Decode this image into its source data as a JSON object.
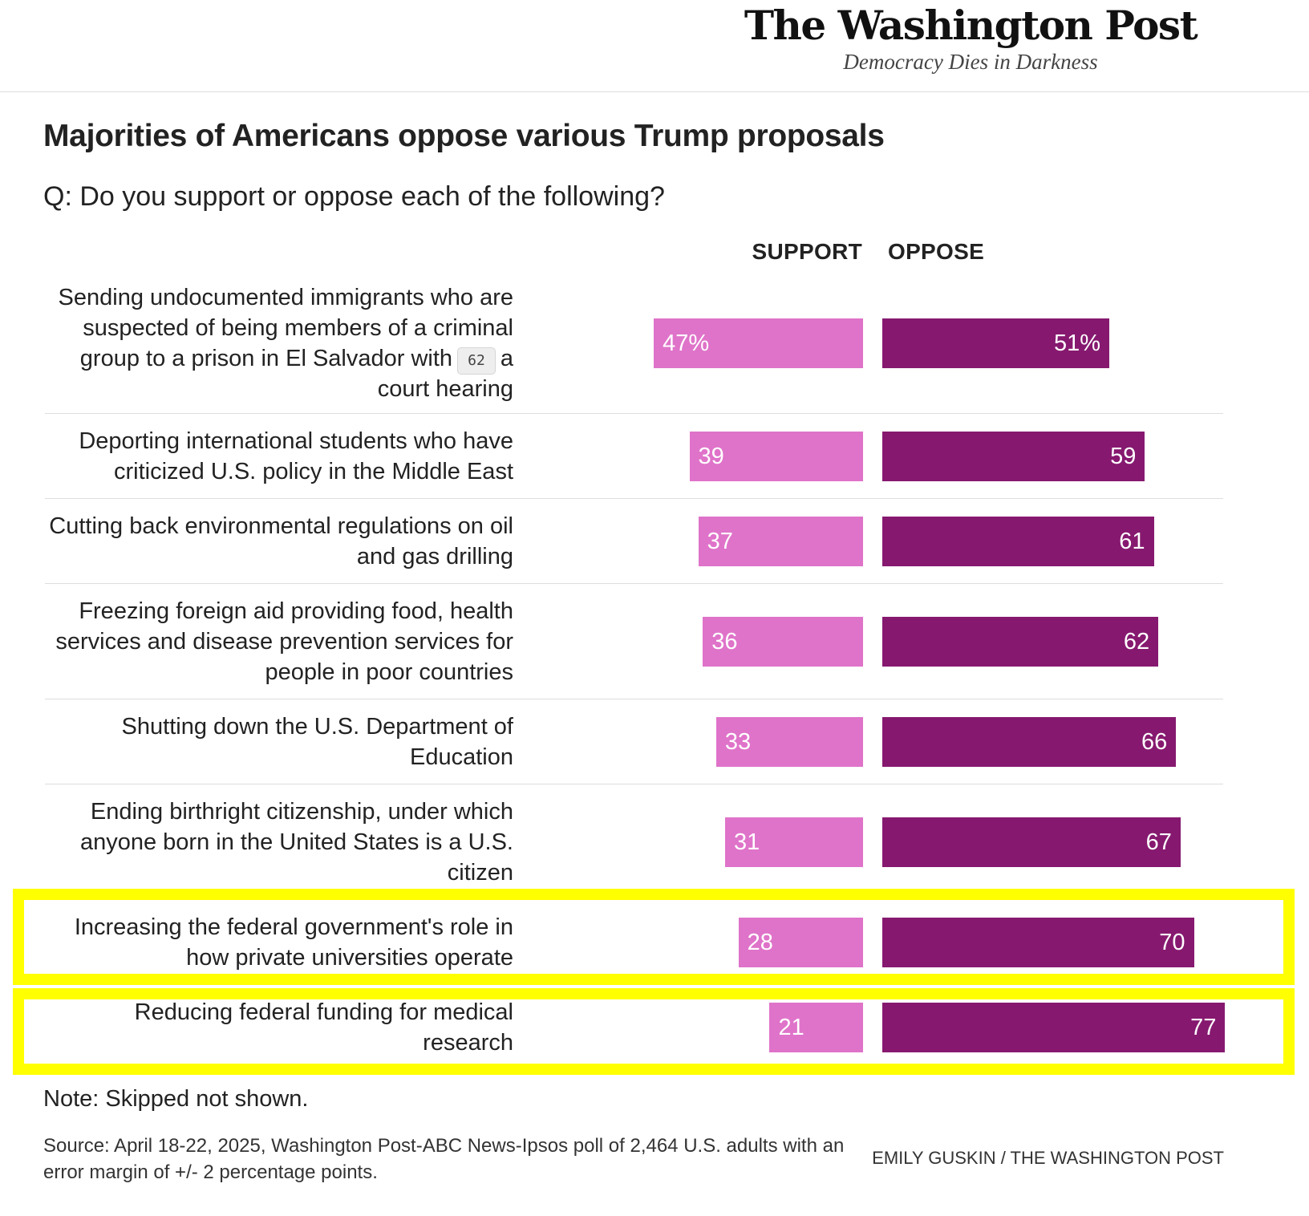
{
  "masthead": {
    "name": "The Washington Post",
    "tagline": "Democracy Dies in Darkness"
  },
  "title": "Majorities of Americans oppose various Trump proposals",
  "subtitle": "Q: Do you support or oppose each of the following?",
  "column_headers": {
    "support": "SUPPORT",
    "oppose": "OPPOSE"
  },
  "tooltip": {
    "value": "62"
  },
  "colors": {
    "support": "#df73c9",
    "oppose": "#86196f",
    "highlight": "#ffff00"
  },
  "chart_data": {
    "type": "bar",
    "orientation": "horizontal",
    "title": "Majorities of Americans oppose various Trump proposals",
    "subtitle": "Q: Do you support or oppose each of the following?",
    "categories": [
      "Sending undocumented immigrants who are suspected of being members of a criminal group to a prison in El Salvador with a court hearing",
      "Deporting international students who have criticized U.S. policy in the Middle East",
      "Cutting back environmental regulations on oil and gas drilling",
      "Freezing foreign aid providing food, health services and disease prevention services for people in poor countries",
      "Shutting down the U.S. Department of Education",
      "Ending birthright citizenship, under which anyone born in the United States is a U.S. citizen",
      "Increasing the federal government's role in how private universities operate",
      "Reducing federal funding for medical research"
    ],
    "series": [
      {
        "name": "SUPPORT",
        "values": [
          47,
          39,
          37,
          36,
          33,
          31,
          28,
          21
        ],
        "labels": [
          "47%",
          "39",
          "37",
          "36",
          "33",
          "31",
          "28",
          "21"
        ]
      },
      {
        "name": "OPPOSE",
        "values": [
          51,
          59,
          61,
          62,
          66,
          67,
          70,
          77
        ],
        "labels": [
          "51%",
          "59",
          "61",
          "62",
          "66",
          "67",
          "70",
          "77"
        ]
      }
    ],
    "value_max": 77,
    "highlighted_rows": [
      6,
      7
    ]
  },
  "rows": [
    {
      "label_pre": "Sending undocumented immigrants who are suspected of being members of a criminal group to a prison in El Salvador with",
      "label_post": " a court hearing"
    },
    {
      "label": "Deporting international students who have criticized U.S. policy in the Middle East"
    },
    {
      "label": "Cutting back environmental regulations on oil and gas drilling"
    },
    {
      "label": "Freezing foreign aid providing food, health services and disease prevention services for people in poor countries"
    },
    {
      "label": "Shutting down the U.S. Department of Education"
    },
    {
      "label": "Ending birthright citizenship, under which anyone born in the United States is a U.S. citizen"
    },
    {
      "label": "Increasing the federal government's role in how private universities operate"
    },
    {
      "label": "Reducing federal funding for medical research"
    }
  ],
  "note": "Note: Skipped not shown.",
  "source": "Source: April 18-22, 2025, Washington Post-ABC News-Ipsos poll of 2,464 U.S. adults with an error margin of +/- 2 percentage points.",
  "credit": "EMILY GUSKIN / THE WASHINGTON POST"
}
